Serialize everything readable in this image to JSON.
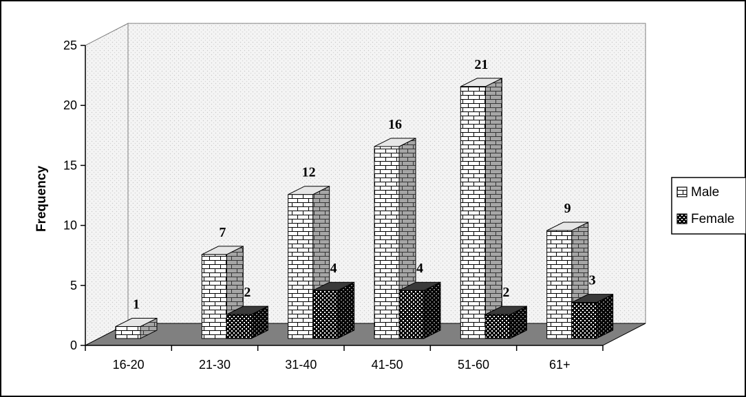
{
  "chart_data": {
    "type": "bar",
    "categories": [
      "16-20",
      "21-30",
      "31-40",
      "41-50",
      "51-60",
      "61+"
    ],
    "series": [
      {
        "name": "Male",
        "values": [
          1,
          7,
          12,
          16,
          21,
          9
        ]
      },
      {
        "name": "Female",
        "values": [
          0,
          2,
          4,
          4,
          2,
          3
        ]
      }
    ],
    "data_labels": {
      "Male": [
        "1",
        "7",
        "12",
        "16",
        "21",
        "9"
      ],
      "Female": [
        "",
        "2",
        "4",
        "4",
        "2",
        "3"
      ]
    },
    "title": "",
    "xlabel": "",
    "ylabel": "Frequency",
    "ylim": [
      0,
      25
    ],
    "yticks": [
      "0",
      "5",
      "10",
      "15",
      "20",
      "25"
    ],
    "grid": false,
    "style": "3d-clustered-column",
    "legend_position": "right",
    "colors": {
      "wall": "#f2f2f2",
      "floor": "#808080",
      "border": "#000000"
    }
  }
}
